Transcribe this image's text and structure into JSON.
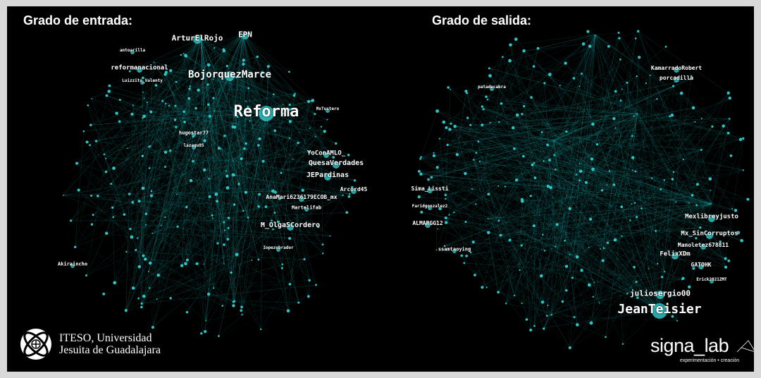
{
  "colors": {
    "background": "#000000",
    "edge": "#1fb5b5",
    "node": "#2fc4c4",
    "text": "#ffffff"
  },
  "left_graph": {
    "title": "Grado de entrada:",
    "labels": [
      "ArturElRojo",
      "EPN",
      "BojorquezMarce",
      "Reforma",
      "reformanacional",
      "YoConAMLO_",
      "QuesaVerdades",
      "JEPardinas",
      "AnaMari6236179ECOB_mx",
      "Arcord45",
      "M_OlgaSCordero",
      "hugostar77",
      "Martelifab",
      "Luizzito_Valenty",
      "antoarilla",
      "MxTustero",
      "lazaqu85",
      "Akiraincho",
      "Iopezobrador"
    ]
  },
  "right_graph": {
    "title": "Grado de salida:",
    "labels": [
      "Sima_Lissti",
      "ALMARGG12",
      "ssamtaoying",
      "Mexlibreyjusto",
      "Mx_SinCorruptos",
      "Manoletez678811",
      "FelixXDm",
      "GATOHK",
      "juliosergio00",
      "JeanTeisier",
      "KamarradoRobert",
      "porcadilla",
      "Erick2021ZMT",
      "Faridgonzalez2",
      "patadecabra"
    ]
  },
  "logos": {
    "iteso_line1": "ITESO, Universidad",
    "iteso_line2": "Jesuita de Guadalajara",
    "signa": "signa_lab",
    "signa_sub": "experimentación • creación"
  }
}
